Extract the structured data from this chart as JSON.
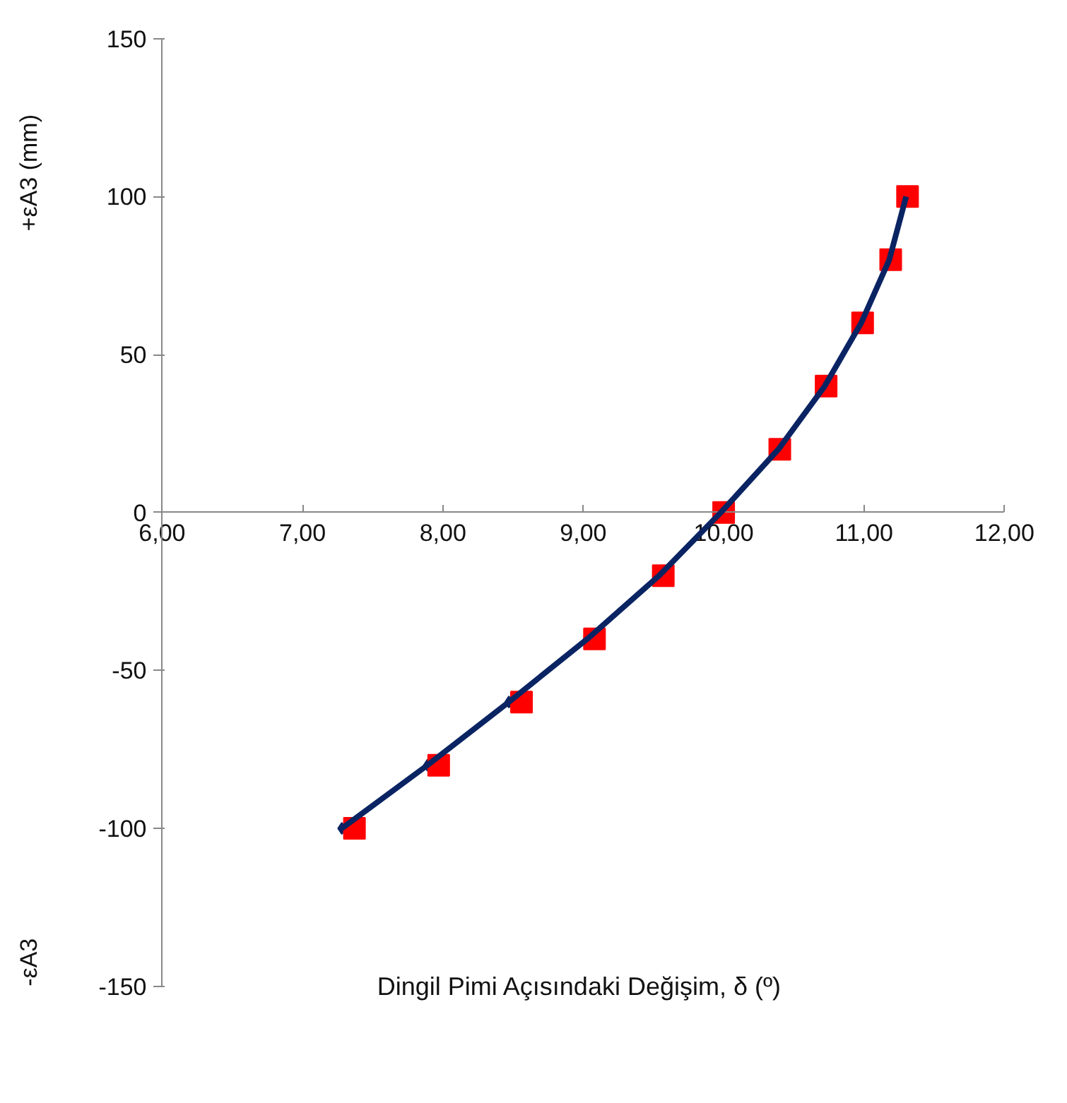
{
  "chart_data": {
    "type": "line",
    "xlabel": "Dingil Pimi  Açısındaki Değişim, δ (º)",
    "ylabel": "+εA3 (mm)",
    "annotations": [
      "-εA3"
    ],
    "xlim": [
      6,
      12
    ],
    "xticks": [
      {
        "value": 6,
        "label": "6,00"
      },
      {
        "value": 7,
        "label": "7,00"
      },
      {
        "value": 8,
        "label": "8,00"
      },
      {
        "value": 9,
        "label": "9,00"
      },
      {
        "value": 10,
        "label": "10,00"
      },
      {
        "value": 11,
        "label": "11,00"
      },
      {
        "value": 12,
        "label": "12,00"
      }
    ],
    "ylim": [
      -150,
      150
    ],
    "yticks": [
      -150,
      -100,
      -50,
      0,
      50,
      100,
      150
    ],
    "grid": false,
    "series": [
      {
        "color": "#0a2463",
        "marker": "diamond",
        "x": [
          7.28,
          7.89,
          8.47,
          9.03,
          9.54,
          9.98,
          10.39,
          10.72,
          10.98,
          11.18,
          11.3
        ],
        "values": [
          -100,
          -80,
          -60,
          -40,
          -20,
          0,
          20,
          40,
          60,
          80,
          100
        ]
      },
      {
        "type": "scatter",
        "color": "#ff0000",
        "marker": "square",
        "x": [
          7.37,
          7.97,
          8.56,
          9.08,
          9.57,
          10.0,
          10.4,
          10.73,
          10.99,
          11.19,
          11.31
        ],
        "values": [
          -100,
          -80,
          -60,
          -40,
          -20,
          0,
          20,
          40,
          60,
          80,
          100
        ]
      }
    ]
  }
}
